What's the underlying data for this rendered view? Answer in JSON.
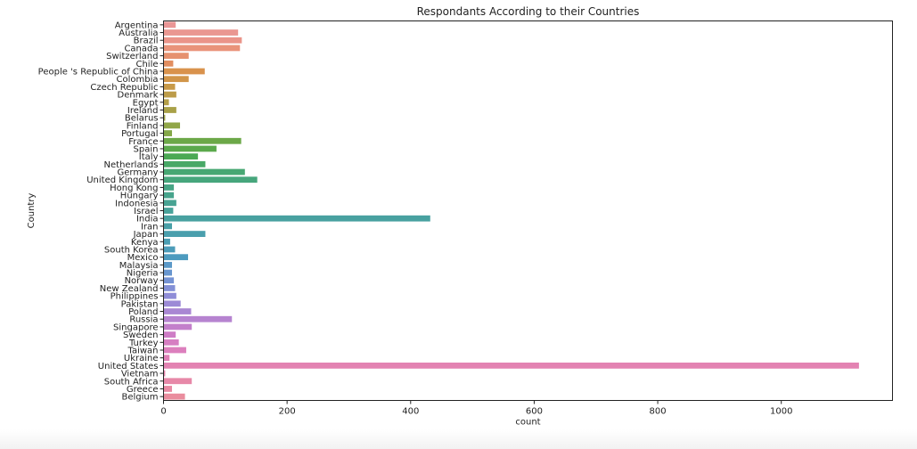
{
  "chart_data": {
    "type": "bar",
    "orientation": "horizontal",
    "title": "Respondants According to their Countries",
    "xlabel": "count",
    "ylabel": "Country",
    "xlim": [
      0,
      1180
    ],
    "xticks": [
      0,
      200,
      400,
      600,
      800,
      1000
    ],
    "grid": false,
    "legend": "none",
    "categories": [
      "Argentina",
      "Australia",
      "Brazil",
      "Canada",
      "Switzerland",
      "Chile",
      "People 's Republic of China",
      "Colombia",
      "Czech Republic",
      "Denmark",
      "Egypt",
      "Ireland",
      "Belarus",
      "Finland",
      "Portugal",
      "France",
      "Spain",
      "Italy",
      "Netherlands",
      "Germany",
      "United Kingdom",
      "Hong Kong",
      "Hungary",
      "Indonesia",
      "Israel",
      "India",
      "Iran",
      "Japan",
      "Kenya",
      "South Korea",
      "Mexico",
      "Malaysia",
      "Nigeria",
      "Norway",
      "New Zealand",
      "Philippines",
      "Pakistan",
      "Poland",
      "Russia",
      "Singapore",
      "Sweden",
      "Turkey",
      "Taiwan",
      "Ukraine",
      "United States",
      "Vietnam",
      "South Africa",
      "Greece",
      "Belgium"
    ],
    "values": [
      19,
      120,
      126,
      123,
      40,
      15,
      66,
      40,
      18,
      20,
      8,
      20,
      2,
      26,
      13,
      125,
      85,
      55,
      67,
      131,
      151,
      16,
      16,
      20,
      15,
      431,
      13,
      67,
      10,
      18,
      39,
      13,
      13,
      16,
      18,
      20,
      27,
      44,
      110,
      45,
      19,
      24,
      36,
      9,
      1125,
      2,
      45,
      13,
      34
    ],
    "colors": [
      "#ea9696",
      "#ea9791",
      "#ea9489",
      "#e9937a",
      "#e6916f",
      "#e28e60",
      "#d9924c",
      "#d19549",
      "#c89a49",
      "#bd9c49",
      "#b49f48",
      "#a9a148",
      "#9da448",
      "#91a648",
      "#84a748",
      "#6ca848",
      "#5ba94c",
      "#4ba954",
      "#48a866",
      "#47a773",
      "#47a67c",
      "#47a585",
      "#47a48c",
      "#47a393",
      "#47a29a",
      "#48a1a0",
      "#49a0a8",
      "#4a9fad",
      "#4b9eb3",
      "#4c9cb9",
      "#4d9bbf",
      "#5b99c8",
      "#6896cf",
      "#7593d4",
      "#8390d6",
      "#8f8dd7",
      "#9c8ad6",
      "#a987d3",
      "#b683d0",
      "#c37fcb",
      "#ce7cc6",
      "#d67ec2",
      "#dc7fbd",
      "#e080b7",
      "#e383b2",
      "#e585ad",
      "#e788a8",
      "#e98aa3",
      "#ea8d9e"
    ]
  }
}
